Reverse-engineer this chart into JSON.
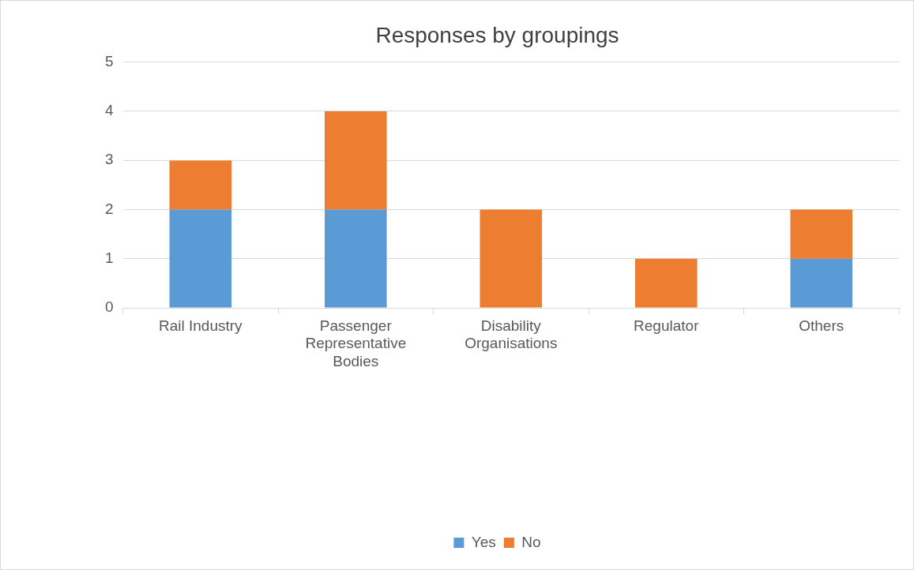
{
  "chart_data": {
    "type": "bar",
    "title": "Responses by groupings",
    "categories": [
      "Rail Industry",
      "Passenger Representative Bodies",
      "Disability Organisations",
      "Regulator",
      "Others"
    ],
    "stacked": true,
    "ylim": [
      0,
      5
    ],
    "yticks": [
      0,
      1,
      2,
      3,
      4,
      5
    ],
    "grid": "y",
    "legend": "bottom",
    "series": [
      {
        "name": "Yes",
        "color": "#5b9bd5",
        "values": [
          2,
          2,
          0,
          0,
          1
        ]
      },
      {
        "name": "No",
        "color": "#ed7d31",
        "values": [
          1,
          2,
          2,
          1,
          1
        ]
      }
    ]
  }
}
